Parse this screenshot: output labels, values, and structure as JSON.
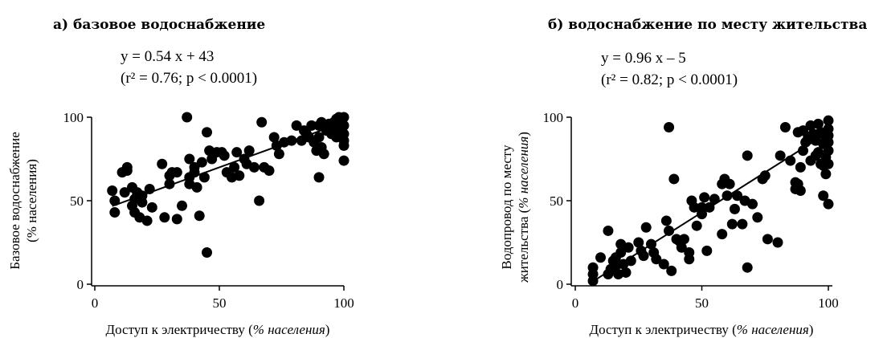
{
  "chart_data": [
    {
      "type": "scatter",
      "title": "а) базовое водоснабжение",
      "equation": "y = 0.54 x + 43",
      "stats": "(r² = 0.76; p < 0.0001)",
      "xlabel": {
        "main": "Доступ к электричеству (",
        "unit": "% населения",
        "end": ")"
      },
      "ylabel": {
        "line1": "Базовое водоснабжение",
        "line2": "(% населения)"
      },
      "xlim": [
        0,
        100
      ],
      "ylim": [
        0,
        100
      ],
      "xticks": [
        "0",
        "50",
        "100"
      ],
      "yticks": [
        "0",
        "50",
        "100"
      ],
      "grid": false,
      "fit": {
        "slope": 0.54,
        "intercept": 43,
        "x_range": [
          7,
          100
        ]
      },
      "points": [
        [
          7,
          56
        ],
        [
          8,
          50
        ],
        [
          8,
          43
        ],
        [
          11,
          67
        ],
        [
          12,
          55
        ],
        [
          13,
          68
        ],
        [
          13,
          70
        ],
        [
          15,
          58
        ],
        [
          15,
          47
        ],
        [
          16,
          43
        ],
        [
          16,
          51
        ],
        [
          17,
          55
        ],
        [
          18,
          40
        ],
        [
          19,
          53
        ],
        [
          19,
          49
        ],
        [
          21,
          38
        ],
        [
          22,
          57
        ],
        [
          23,
          46
        ],
        [
          27,
          72
        ],
        [
          28,
          40
        ],
        [
          30,
          65
        ],
        [
          30,
          60
        ],
        [
          31,
          67
        ],
        [
          33,
          67
        ],
        [
          33,
          39
        ],
        [
          35,
          47
        ],
        [
          37,
          100
        ],
        [
          38,
          75
        ],
        [
          38,
          64
        ],
        [
          38,
          60
        ],
        [
          40,
          70
        ],
        [
          40,
          67
        ],
        [
          41,
          58
        ],
        [
          42,
          41
        ],
        [
          43,
          73
        ],
        [
          44,
          64
        ],
        [
          45,
          91
        ],
        [
          45,
          19
        ],
        [
          46,
          80
        ],
        [
          47,
          75
        ],
        [
          49,
          79
        ],
        [
          51,
          79
        ],
        [
          52,
          77
        ],
        [
          53,
          67
        ],
        [
          55,
          64
        ],
        [
          56,
          70
        ],
        [
          57,
          79
        ],
        [
          58,
          65
        ],
        [
          60,
          75
        ],
        [
          61,
          72
        ],
        [
          62,
          80
        ],
        [
          64,
          70
        ],
        [
          66,
          50
        ],
        [
          67,
          97
        ],
        [
          68,
          70
        ],
        [
          70,
          68
        ],
        [
          72,
          88
        ],
        [
          73,
          83
        ],
        [
          74,
          78
        ],
        [
          76,
          85
        ],
        [
          79,
          86
        ],
        [
          81,
          95
        ],
        [
          83,
          86
        ],
        [
          84,
          92
        ],
        [
          85,
          90
        ],
        [
          86,
          88
        ],
        [
          87,
          95
        ],
        [
          88,
          85
        ],
        [
          89,
          80
        ],
        [
          90,
          95
        ],
        [
          90,
          88
        ],
        [
          90,
          64
        ],
        [
          91,
          97
        ],
        [
          91,
          82
        ],
        [
          92,
          78
        ],
        [
          93,
          92
        ],
        [
          94,
          96
        ],
        [
          95,
          90
        ],
        [
          96,
          97
        ],
        [
          96,
          94
        ],
        [
          97,
          99
        ],
        [
          97,
          88
        ],
        [
          98,
          95
        ],
        [
          98,
          100
        ],
        [
          99,
          92
        ],
        [
          99,
          97
        ],
        [
          100,
          100
        ],
        [
          100,
          95
        ],
        [
          100,
          90
        ],
        [
          100,
          86
        ],
        [
          100,
          83
        ],
        [
          100,
          74
        ]
      ]
    },
    {
      "type": "scatter",
      "title": "б) водоснабжение по месту жительства",
      "equation": "y = 0.96 x – 5",
      "stats": "(r² = 0.82; p < 0.0001)",
      "xlabel": {
        "main": "Доступ к электричеству (",
        "unit": "% населения",
        "end": ")"
      },
      "ylabel": {
        "line1": "Водопровод по месту",
        "line2_main": "жительства (",
        "line2_unit": "% населения",
        "line2_end": ")"
      },
      "xlim": [
        0,
        100
      ],
      "ylim": [
        0,
        100
      ],
      "xticks": [
        "0",
        "50",
        "100"
      ],
      "yticks": [
        "0",
        "50",
        "100"
      ],
      "grid": false,
      "fit": {
        "slope": 0.96,
        "intercept": -5,
        "x_range": [
          7,
          100
        ]
      },
      "points": [
        [
          7,
          10
        ],
        [
          7,
          6
        ],
        [
          7,
          2
        ],
        [
          10,
          16
        ],
        [
          13,
          6
        ],
        [
          13,
          32
        ],
        [
          14,
          9
        ],
        [
          15,
          14
        ],
        [
          16,
          16
        ],
        [
          16,
          11
        ],
        [
          17,
          6
        ],
        [
          18,
          19
        ],
        [
          18,
          24
        ],
        [
          19,
          12
        ],
        [
          20,
          7
        ],
        [
          21,
          22
        ],
        [
          22,
          14
        ],
        [
          25,
          25
        ],
        [
          26,
          20
        ],
        [
          27,
          17
        ],
        [
          28,
          34
        ],
        [
          30,
          24
        ],
        [
          31,
          19
        ],
        [
          32,
          15
        ],
        [
          35,
          12
        ],
        [
          36,
          38
        ],
        [
          37,
          32
        ],
        [
          37,
          94
        ],
        [
          38,
          8
        ],
        [
          39,
          63
        ],
        [
          40,
          27
        ],
        [
          41,
          26
        ],
        [
          42,
          22
        ],
        [
          43,
          27
        ],
        [
          45,
          15
        ],
        [
          45,
          19
        ],
        [
          46,
          50
        ],
        [
          47,
          46
        ],
        [
          48,
          35
        ],
        [
          50,
          42
        ],
        [
          50,
          46
        ],
        [
          51,
          52
        ],
        [
          52,
          20
        ],
        [
          53,
          46
        ],
        [
          55,
          51
        ],
        [
          58,
          60
        ],
        [
          58,
          30
        ],
        [
          59,
          63
        ],
        [
          60,
          53
        ],
        [
          61,
          60
        ],
        [
          62,
          36
        ],
        [
          63,
          45
        ],
        [
          64,
          53
        ],
        [
          66,
          36
        ],
        [
          67,
          50
        ],
        [
          68,
          77
        ],
        [
          68,
          10
        ],
        [
          70,
          48
        ],
        [
          72,
          40
        ],
        [
          74,
          63
        ],
        [
          75,
          65
        ],
        [
          76,
          27
        ],
        [
          80,
          25
        ],
        [
          81,
          77
        ],
        [
          83,
          94
        ],
        [
          85,
          74
        ],
        [
          87,
          61
        ],
        [
          87,
          57
        ],
        [
          88,
          60
        ],
        [
          88,
          91
        ],
        [
          89,
          56
        ],
        [
          89,
          70
        ],
        [
          90,
          80
        ],
        [
          90,
          92
        ],
        [
          91,
          85
        ],
        [
          92,
          88
        ],
        [
          93,
          95
        ],
        [
          93,
          74
        ],
        [
          94,
          90
        ],
        [
          95,
          77
        ],
        [
          95,
          86
        ],
        [
          96,
          96
        ],
        [
          96,
          79
        ],
        [
          97,
          72
        ],
        [
          97,
          91
        ],
        [
          98,
          84
        ],
        [
          98,
          71
        ],
        [
          98,
          53
        ],
        [
          99,
          87
        ],
        [
          99,
          66
        ],
        [
          99,
          76
        ],
        [
          100,
          98
        ],
        [
          100,
          93
        ],
        [
          100,
          89
        ],
        [
          100,
          80
        ],
        [
          100,
          72
        ],
        [
          100,
          48
        ],
        [
          100,
          85
        ]
      ]
    }
  ]
}
